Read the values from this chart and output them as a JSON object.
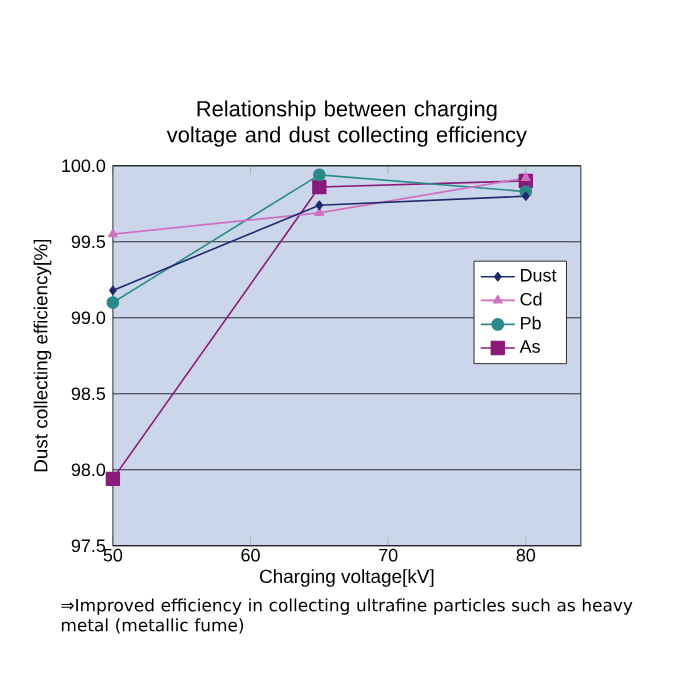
{
  "chart_data": {
    "type": "line",
    "title": "Relationship between charging voltage and dust collecting efficiency",
    "xlabel": "Charging voltage[kV]",
    "ylabel": "Dust collecting efficiency[%]",
    "annotations": [
      "⇒Improved efficiency in collecting ultrafine particles such as heavy metal (metallic fume)"
    ],
    "x": [
      50,
      65,
      80
    ],
    "series": [
      {
        "name": "Dust",
        "color": "#1f2a6e",
        "marker": "diamond",
        "values": [
          99.18,
          99.74,
          99.8
        ]
      },
      {
        "name": "Cd",
        "color": "#d070c0",
        "marker": "triangle",
        "values": [
          99.55,
          99.69,
          99.92
        ]
      },
      {
        "name": "Pb",
        "color": "#2a8a8a",
        "marker": "circle",
        "values": [
          99.1,
          99.94,
          99.83
        ]
      },
      {
        "name": "As",
        "color": "#8a1a78",
        "marker": "square",
        "values": [
          97.94,
          99.86,
          99.9
        ]
      }
    ],
    "xlim": [
      50,
      84
    ],
    "xticks": [
      50,
      60,
      70,
      80
    ],
    "ylim": [
      97.5,
      100
    ],
    "yticks": [
      {
        "value": 97.5,
        "label": "97.5"
      },
      {
        "value": 98,
        "label": "98.0"
      },
      {
        "value": 98.5,
        "label": "98.5"
      },
      {
        "value": 99,
        "label": "99.0"
      },
      {
        "value": 99.5,
        "label": "99.5"
      },
      {
        "value": 100,
        "label": "100.0"
      }
    ],
    "grid": "y",
    "legend": "right",
    "line_style": "solid"
  }
}
